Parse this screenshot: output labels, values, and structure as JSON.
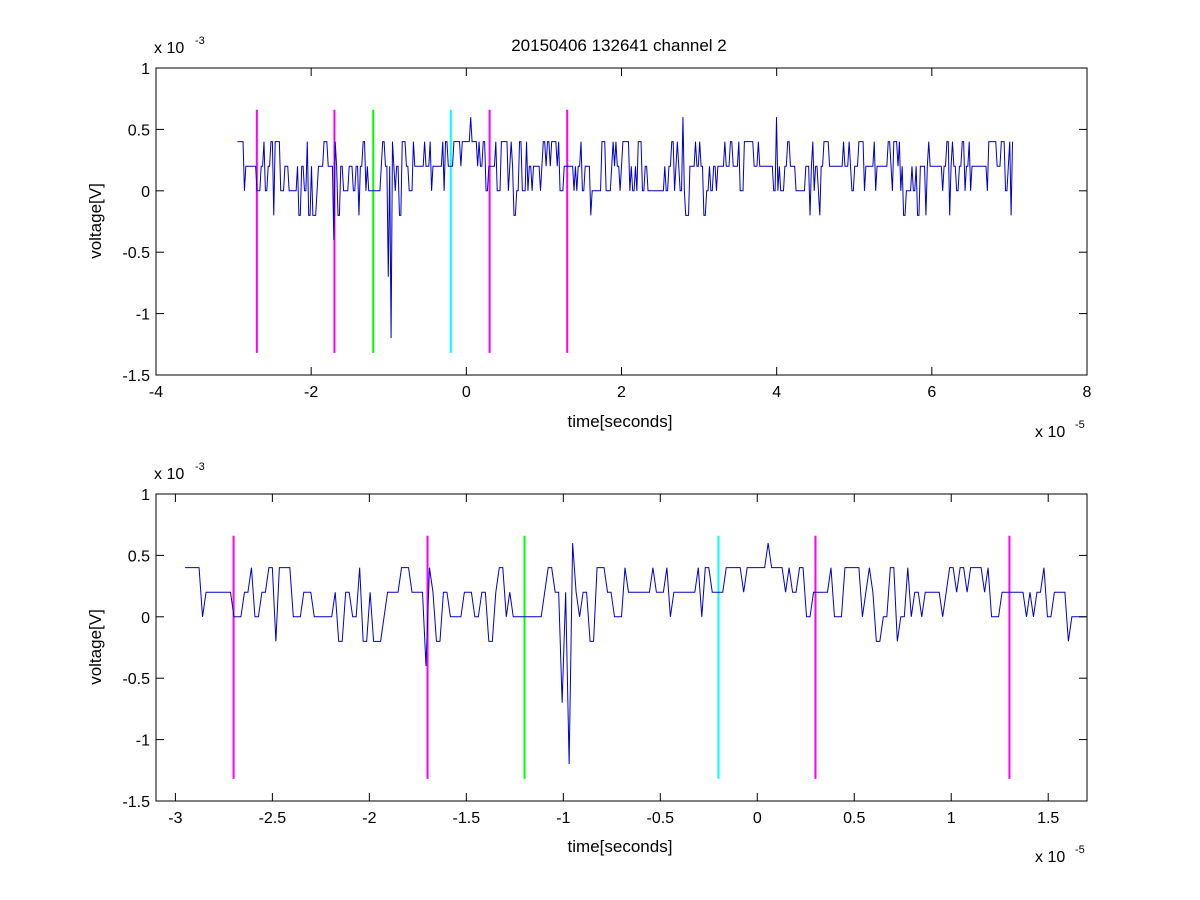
{
  "chart_data": [
    {
      "type": "line",
      "title": "20150406 132641 channel 2",
      "xlabel": "time[seconds]",
      "ylabel": "voltage[V]",
      "x_multiplier": {
        "base": "x 10",
        "exponent": "-5"
      },
      "y_multiplier": {
        "base": "x 10",
        "exponent": "-3"
      },
      "xlim": [
        -4,
        8
      ],
      "ylim": [
        -1.5,
        1
      ],
      "x_units_scale": "1e-5",
      "y_units_scale": "1e-3",
      "x_ticks": [
        -4,
        -2,
        0,
        2,
        4,
        6,
        8
      ],
      "x_tick_labels": [
        "-4",
        "-2",
        "0",
        "2",
        "4",
        "6",
        "8"
      ],
      "y_ticks": [
        -1.5,
        -1,
        -0.5,
        0,
        0.5,
        1
      ],
      "y_tick_labels": [
        "-1.5",
        "-1",
        "-0.5",
        "0",
        "0.5",
        "1"
      ],
      "grid": false,
      "signal": {
        "color": "#0000cc",
        "x_start": -2.95,
        "x_end": 7.05,
        "baseline": 0.2,
        "levels": [
          -0.2,
          0,
          0.2,
          0.4
        ],
        "notable_points": [
          {
            "x": -1.7,
            "y": -0.4
          },
          {
            "x": -1.0,
            "y": -0.7
          },
          {
            "x": -0.97,
            "y": -1.2
          },
          {
            "x": 0.05,
            "y": 0.6
          },
          {
            "x": 2.8,
            "y": 0.6
          },
          {
            "x": 4.0,
            "y": 0.6
          }
        ]
      },
      "markers": [
        {
          "x": -2.7,
          "color": "#ff00ff",
          "y_range": [
            -1.32,
            0.66
          ]
        },
        {
          "x": -1.7,
          "color": "#ff00ff",
          "y_range": [
            -1.32,
            0.66
          ]
        },
        {
          "x": -1.2,
          "color": "#00ff00",
          "y_range": [
            -1.32,
            0.66
          ]
        },
        {
          "x": -0.2,
          "color": "#00ffff",
          "y_range": [
            -1.32,
            0.66
          ]
        },
        {
          "x": 0.3,
          "color": "#ff00ff",
          "y_range": [
            -1.32,
            0.66
          ]
        },
        {
          "x": 1.3,
          "color": "#ff00ff",
          "y_range": [
            -1.32,
            0.66
          ]
        }
      ]
    },
    {
      "type": "line",
      "title": "",
      "xlabel": "time[seconds]",
      "ylabel": "voltage[V]",
      "x_multiplier": {
        "base": "x 10",
        "exponent": "-5"
      },
      "y_multiplier": {
        "base": "x 10",
        "exponent": "-3"
      },
      "xlim": [
        -3.1,
        1.7
      ],
      "ylim": [
        -1.5,
        1
      ],
      "x_units_scale": "1e-5",
      "y_units_scale": "1e-3",
      "x_ticks": [
        -3,
        -2.5,
        -2,
        -1.5,
        -1,
        -0.5,
        0,
        0.5,
        1,
        1.5
      ],
      "x_tick_labels": [
        "-3",
        "-2.5",
        "-2",
        "-1.5",
        "-1",
        "-0.5",
        "0",
        "0.5",
        "1",
        "1.5"
      ],
      "y_ticks": [
        -1.5,
        -1,
        -0.5,
        0,
        0.5,
        1
      ],
      "y_tick_labels": [
        "-1.5",
        "-1",
        "-0.5",
        "0",
        "0.5",
        "1"
      ],
      "grid": false,
      "signal": {
        "color": "#0000cc",
        "x_start": -2.95,
        "x_end": 1.7,
        "baseline": 0.2,
        "levels": [
          -0.2,
          0,
          0.2,
          0.4
        ],
        "notable_points": [
          {
            "x": -1.7,
            "y": -0.4
          },
          {
            "x": -1.37,
            "y": -0.2
          },
          {
            "x": -1.0,
            "y": -0.7
          },
          {
            "x": -0.97,
            "y": -1.2
          },
          {
            "x": -0.95,
            "y": 0.6
          },
          {
            "x": 0.05,
            "y": 0.6
          },
          {
            "x": 0.72,
            "y": -0.2
          }
        ]
      },
      "markers": [
        {
          "x": -2.7,
          "color": "#ff00ff",
          "y_range": [
            -1.32,
            0.66
          ]
        },
        {
          "x": -1.7,
          "color": "#ff00ff",
          "y_range": [
            -1.32,
            0.66
          ]
        },
        {
          "x": -1.2,
          "color": "#00ff00",
          "y_range": [
            -1.32,
            0.66
          ]
        },
        {
          "x": -0.2,
          "color": "#00ffff",
          "y_range": [
            -1.32,
            0.66
          ]
        },
        {
          "x": 0.3,
          "color": "#ff00ff",
          "y_range": [
            -1.32,
            0.66
          ]
        },
        {
          "x": 1.3,
          "color": "#ff00ff",
          "y_range": [
            -1.32,
            0.66
          ]
        }
      ]
    }
  ]
}
